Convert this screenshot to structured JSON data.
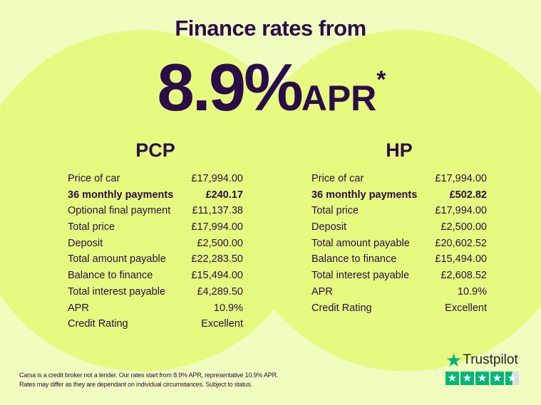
{
  "headline": {
    "line1": "Finance rates from",
    "rate": "8.9%",
    "apr": "APR",
    "asterisk": "*"
  },
  "pcp": {
    "title": "PCP",
    "rows": [
      {
        "label": "Price of car",
        "value": "£17,994.00",
        "bold": false
      },
      {
        "label": "36 monthly payments",
        "value": "£240.17",
        "bold": true
      },
      {
        "label": "Optional final payment",
        "value": "£11,137.38",
        "bold": false
      },
      {
        "label": "Total price",
        "value": "£17,994.00",
        "bold": false
      },
      {
        "label": "Deposit",
        "value": "£2,500.00",
        "bold": false
      },
      {
        "label": "Total amount payable",
        "value": "£22,283.50",
        "bold": false
      },
      {
        "label": "Balance to finance",
        "value": "£15,494.00",
        "bold": false
      },
      {
        "label": "Total interest payable",
        "value": "£4,289.50",
        "bold": false
      },
      {
        "label": "APR",
        "value": "10.9%",
        "bold": false
      },
      {
        "label": "Credit Rating",
        "value": "Excellent",
        "bold": false
      }
    ]
  },
  "hp": {
    "title": "HP",
    "rows": [
      {
        "label": "Price of car",
        "value": "£17,994.00",
        "bold": false
      },
      {
        "label": "36 monthly payments",
        "value": "£502.82",
        "bold": true
      },
      {
        "label": "Total price",
        "value": "£17,994.00",
        "bold": false
      },
      {
        "label": "Deposit",
        "value": "£2,500.00",
        "bold": false
      },
      {
        "label": "Total amount payable",
        "value": "£20,602.52",
        "bold": false
      },
      {
        "label": "Balance to finance",
        "value": "£15,494.00",
        "bold": false
      },
      {
        "label": "Total interest payable",
        "value": "£2,608.52",
        "bold": false
      },
      {
        "label": "APR",
        "value": "10.9%",
        "bold": false
      },
      {
        "label": "Credit Rating",
        "value": "Excellent",
        "bold": false
      }
    ]
  },
  "disclaimer": {
    "line1": "Carsa is a credit broker not a lender. Our rates start from 8.9% APR, representative 10.9% APR.",
    "line2": "Rates may differ as they are dependant on individual circumstances. Subject to status."
  },
  "trustpilot": {
    "name": "Trustpilot",
    "rating_stars": 4.5,
    "icon": "star-icon"
  },
  "colors": {
    "background": "#f1fcbf",
    "circle": "#e6fa7f",
    "text": "#2b0c4a",
    "trustpilot_green": "#00b67a"
  }
}
